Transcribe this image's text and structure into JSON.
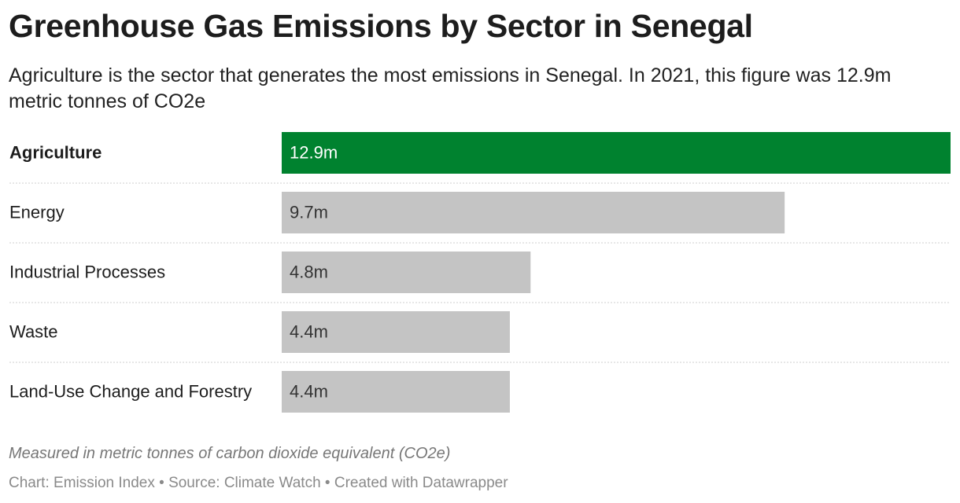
{
  "chart_data": {
    "type": "bar",
    "title": "Greenhouse Gas Emissions by Sector in Senegal",
    "subtitle": "Agriculture is the sector that generates the most emissions in Senegal. In 2021, this figure was 12.9m metric tonnes of CO2e",
    "categories": [
      "Agriculture",
      "Energy",
      "Industrial Processes",
      "Waste",
      "Land-Use Change and Forestry"
    ],
    "values": [
      12.9,
      9.7,
      4.8,
      4.4,
      4.4
    ],
    "value_labels": [
      "12.9m",
      "9.7m",
      "4.8m",
      "4.4m",
      "4.4m"
    ],
    "colors": [
      "#00822f",
      "#c4c4c4",
      "#c4c4c4",
      "#c4c4c4",
      "#c4c4c4"
    ],
    "note": "Measured in metric tonnes of carbon dioxide equivalent (CO2e)",
    "source": "Chart: Emission Index • Source: Climate Watch • Created with Datawrapper"
  }
}
